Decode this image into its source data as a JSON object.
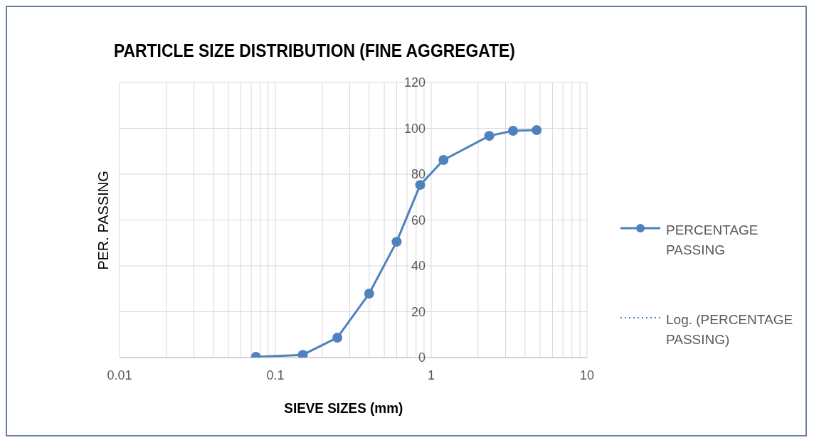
{
  "chart_data": {
    "type": "line",
    "title": "PARTICLE SIZE DISTRIBUTION (FINE AGGREGATE)",
    "xlabel": "SIEVE SIZES (mm)",
    "ylabel": "PER. PASSING",
    "log": "x",
    "xlim": [
      0.01,
      10
    ],
    "xticks": [
      0.01,
      {
        "value": 0.02,
        "label": null
      },
      {
        "value": 0.03,
        "label": null
      },
      {
        "value": 0.04,
        "label": null
      },
      {
        "value": 0.05,
        "label": null
      },
      {
        "value": 0.06,
        "label": null
      },
      {
        "value": 0.07,
        "label": null
      },
      {
        "value": 0.08,
        "label": null
      },
      {
        "value": 0.09,
        "label": null
      },
      0.1,
      {
        "value": 0.2,
        "label": null
      },
      {
        "value": 0.3,
        "label": null
      },
      {
        "value": 0.4,
        "label": null
      },
      {
        "value": 0.5,
        "label": null
      },
      {
        "value": 0.6,
        "label": null
      },
      {
        "value": 0.7,
        "label": null
      },
      {
        "value": 0.8,
        "label": null
      },
      {
        "value": 0.9,
        "label": null
      },
      1,
      {
        "value": 2,
        "label": null
      },
      {
        "value": 3,
        "label": null
      },
      {
        "value": 4,
        "label": null
      },
      {
        "value": 5,
        "label": null
      },
      {
        "value": 6,
        "label": null
      },
      {
        "value": 7,
        "label": null
      },
      {
        "value": 8,
        "label": null
      },
      {
        "value": 9,
        "label": null
      },
      10
    ],
    "ylim": [
      0,
      120
    ],
    "yticks": [
      0,
      20,
      40,
      60,
      80,
      100,
      120
    ],
    "grid": true,
    "legend": "right",
    "marker": "circle",
    "line_style": "solid",
    "series": [
      {
        "name": "PERCENTAGE PASSING",
        "color": "#4f81bd",
        "x": [
          0.075,
          0.15,
          0.25,
          0.4,
          0.6,
          0.85,
          1.2,
          2.36,
          3.35,
          4.75
        ],
        "values": [
          0.3,
          1.2,
          8.7,
          27.9,
          50.5,
          75.3,
          86.2,
          96.7,
          98.9,
          99.2
        ]
      },
      {
        "name": "Log. (PERCENTAGE PASSING)",
        "color": "#4f81bd",
        "line_style": "dotted",
        "marker": "none"
      }
    ]
  }
}
